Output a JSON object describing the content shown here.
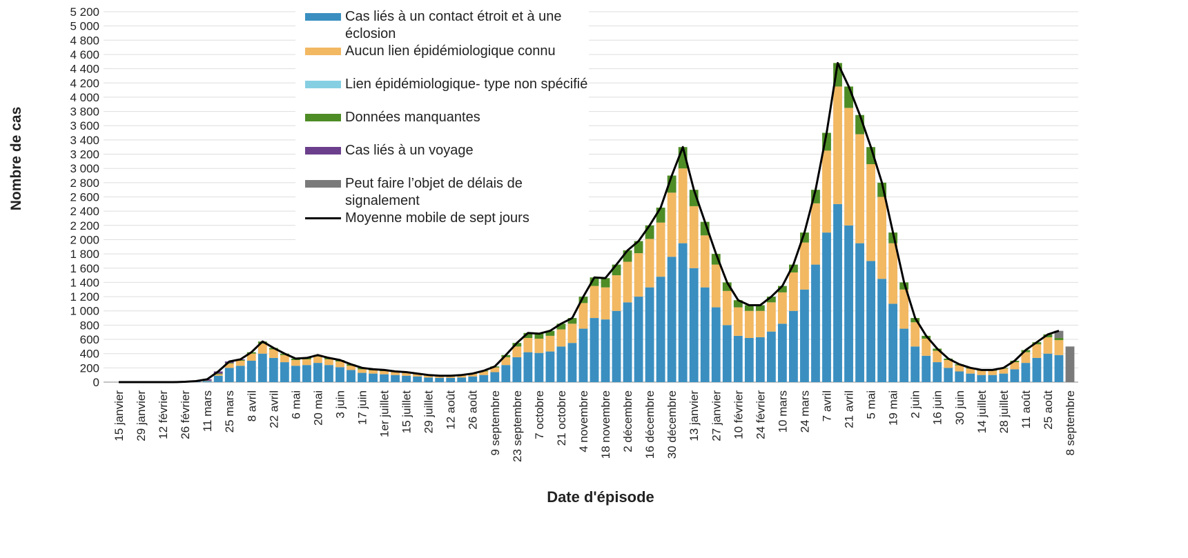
{
  "chart_data": {
    "type": "bar",
    "stacked": true,
    "y_label": "Nombre de cas",
    "x_label": "Date d'épisode",
    "categories": [
      "15 janvier",
      null,
      "29 janvier",
      null,
      "12 février",
      null,
      "26 février",
      null,
      "11 mars",
      null,
      "25 mars",
      null,
      "8 avril",
      null,
      "22 avril",
      null,
      "6 mai",
      null,
      "20 mai",
      null,
      "3 juin",
      null,
      "17 juin",
      null,
      "1er juillet",
      null,
      "15 juillet",
      null,
      "29 juillet",
      null,
      "12 août",
      null,
      "26 août",
      null,
      "9 septembre",
      null,
      "23 septembre",
      null,
      "7 octobre",
      null,
      "21 octobre",
      null,
      "4 novembre",
      null,
      "18 novembre",
      null,
      "2 décembre",
      null,
      "16 décembre",
      null,
      "30 décembre",
      null,
      "13 janvier",
      null,
      "27 janvier",
      null,
      "10 février",
      null,
      "24 février",
      null,
      "10 mars",
      null,
      "24 mars",
      null,
      "7 avril",
      null,
      "21 avril",
      null,
      "5 mai",
      null,
      "19 mai",
      null,
      "2 juin",
      null,
      "16 juin",
      null,
      "30 juin",
      null,
      "14 juillet",
      null,
      "28 juillet",
      null,
      "11 août",
      null,
      "25 août",
      null,
      "8 septembre"
    ],
    "series": [
      {
        "name": "Cas liés à un contact étroit et à une éclosion",
        "color": "#3a8fc0",
        "values": [
          0,
          0,
          0,
          0,
          0,
          0,
          0,
          5,
          15,
          90,
          200,
          230,
          300,
          400,
          340,
          280,
          230,
          240,
          270,
          240,
          210,
          170,
          130,
          120,
          110,
          100,
          90,
          80,
          65,
          60,
          60,
          65,
          80,
          100,
          140,
          240,
          350,
          420,
          410,
          430,
          500,
          550,
          750,
          900,
          880,
          1000,
          1120,
          1200,
          1330,
          1480,
          1760,
          1950,
          1600,
          1330,
          1050,
          800,
          650,
          620,
          630,
          710,
          820,
          1000,
          1300,
          1650,
          2100,
          2500,
          2200,
          1950,
          1700,
          1450,
          1100,
          750,
          500,
          370,
          280,
          200,
          150,
          120,
          100,
          100,
          120,
          180,
          270,
          340,
          400,
          380,
          0
        ]
      },
      {
        "name": "Aucun lien épidémiologique connu",
        "color": "#f2b862",
        "values": [
          0,
          0,
          0,
          0,
          0,
          0,
          0,
          0,
          5,
          20,
          60,
          70,
          100,
          140,
          120,
          100,
          80,
          80,
          90,
          80,
          80,
          60,
          50,
          45,
          45,
          40,
          40,
          30,
          25,
          25,
          25,
          30,
          35,
          50,
          65,
          110,
          150,
          200,
          200,
          220,
          240,
          270,
          360,
          450,
          450,
          500,
          570,
          610,
          680,
          760,
          900,
          1050,
          870,
          730,
          600,
          480,
          400,
          380,
          370,
          410,
          440,
          540,
          660,
          860,
          1150,
          1650,
          1650,
          1530,
          1360,
          1150,
          850,
          550,
          340,
          240,
          160,
          110,
          85,
          70,
          60,
          60,
          70,
          100,
          150,
          190,
          230,
          210,
          0
        ]
      },
      {
        "name": "Lien épidémiologique- type non spécifié",
        "color": "#86cfe3",
        "values": [
          0,
          0,
          0,
          0,
          0,
          0,
          0,
          0,
          0,
          0,
          0,
          0,
          0,
          0,
          0,
          0,
          0,
          0,
          0,
          0,
          0,
          0,
          0,
          0,
          0,
          0,
          0,
          0,
          0,
          0,
          0,
          0,
          0,
          0,
          0,
          0,
          0,
          0,
          0,
          0,
          0,
          0,
          0,
          0,
          0,
          0,
          0,
          0,
          0,
          0,
          0,
          0,
          0,
          0,
          0,
          0,
          0,
          0,
          0,
          0,
          0,
          0,
          0,
          0,
          0,
          0,
          0,
          0,
          0,
          0,
          0,
          0,
          0,
          0,
          0,
          0,
          0,
          0,
          0,
          0,
          0,
          0,
          0,
          0,
          0,
          0,
          0
        ]
      },
      {
        "name": "Données manquantes",
        "color": "#4e8c26",
        "values": [
          0,
          0,
          0,
          0,
          0,
          0,
          0,
          0,
          0,
          10,
          10,
          10,
          20,
          30,
          20,
          20,
          20,
          20,
          20,
          20,
          20,
          20,
          20,
          15,
          15,
          10,
          10,
          10,
          10,
          5,
          5,
          5,
          5,
          10,
          15,
          30,
          50,
          70,
          70,
          70,
          80,
          80,
          90,
          120,
          130,
          150,
          160,
          170,
          190,
          210,
          240,
          300,
          230,
          190,
          150,
          120,
          100,
          80,
          80,
          80,
          90,
          110,
          140,
          190,
          250,
          330,
          300,
          270,
          240,
          200,
          150,
          100,
          60,
          40,
          30,
          20,
          15,
          10,
          10,
          10,
          10,
          20,
          30,
          30,
          40,
          30,
          0
        ]
      },
      {
        "name": "Cas liés à un voyage",
        "color": "#6b3f8c",
        "values": [
          0,
          0,
          0,
          0,
          0,
          0,
          5,
          10,
          20,
          30,
          20,
          10,
          0,
          0,
          0,
          0,
          0,
          0,
          0,
          0,
          0,
          0,
          0,
          0,
          0,
          0,
          0,
          0,
          0,
          0,
          0,
          0,
          0,
          0,
          0,
          0,
          0,
          0,
          0,
          0,
          0,
          0,
          0,
          0,
          0,
          0,
          0,
          0,
          0,
          0,
          0,
          0,
          0,
          0,
          0,
          0,
          0,
          0,
          0,
          0,
          0,
          0,
          0,
          0,
          0,
          0,
          0,
          0,
          0,
          0,
          0,
          0,
          0,
          0,
          0,
          0,
          0,
          0,
          0,
          0,
          0,
          0,
          0,
          0,
          0,
          0,
          0
        ]
      },
      {
        "name": "Peut faire l’objet de délais de signalement",
        "color": "#7a7a7a",
        "values": [
          0,
          0,
          0,
          0,
          0,
          0,
          0,
          0,
          0,
          0,
          0,
          0,
          0,
          0,
          0,
          0,
          0,
          0,
          0,
          0,
          0,
          0,
          0,
          0,
          0,
          0,
          0,
          0,
          0,
          0,
          0,
          0,
          0,
          0,
          0,
          0,
          0,
          0,
          0,
          0,
          0,
          0,
          0,
          0,
          0,
          0,
          0,
          0,
          0,
          0,
          0,
          0,
          0,
          0,
          0,
          0,
          0,
          0,
          0,
          0,
          0,
          0,
          0,
          0,
          0,
          0,
          0,
          0,
          0,
          0,
          0,
          0,
          0,
          0,
          0,
          0,
          0,
          0,
          0,
          0,
          0,
          0,
          0,
          0,
          0,
          100,
          500
        ]
      },
      {
        "name": "Moyenne mobile de sept jours",
        "color": "#000000",
        "type": "line",
        "values": [
          0,
          0,
          0,
          0,
          0,
          0,
          5,
          15,
          40,
          150,
          290,
          320,
          420,
          570,
          480,
          400,
          330,
          340,
          380,
          340,
          310,
          250,
          200,
          180,
          170,
          150,
          140,
          120,
          100,
          90,
          90,
          100,
          120,
          160,
          220,
          380,
          550,
          690,
          680,
          720,
          820,
          900,
          1200,
          1470,
          1460,
          1650,
          1850,
          1980,
          2200,
          2450,
          2900,
          3300,
          2700,
          2250,
          1800,
          1400,
          1150,
          1080,
          1080,
          1200,
          1350,
          1650,
          2100,
          2700,
          3500,
          4480,
          4150,
          3750,
          3300,
          2800,
          2100,
          1400,
          900,
          650,
          470,
          330,
          250,
          200,
          170,
          170,
          200,
          300,
          450,
          560,
          670,
          720,
          null
        ]
      }
    ],
    "ylim": [
      0,
      5200
    ],
    "yticks": [
      0,
      200,
      400,
      600,
      800,
      {
        "value": 1000,
        "label": "1 000"
      },
      {
        "value": 1200,
        "label": "1 200"
      },
      {
        "value": 1400,
        "label": "1 400"
      },
      {
        "value": 1600,
        "label": "1 600"
      },
      {
        "value": 1800,
        "label": "1 800"
      },
      {
        "value": 2000,
        "label": "2 000"
      },
      {
        "value": 2200,
        "label": "2 200"
      },
      {
        "value": 2400,
        "label": "2 400"
      },
      {
        "value": 2600,
        "label": "2 600"
      },
      {
        "value": 2800,
        "label": "2 800"
      },
      {
        "value": 3000,
        "label": "3 000"
      },
      {
        "value": 3200,
        "label": "3 200"
      },
      {
        "value": 3400,
        "label": "3 400"
      },
      {
        "value": 3600,
        "label": "3 600"
      },
      {
        "value": 3800,
        "label": "3 800"
      },
      {
        "value": 4000,
        "label": "4 000"
      },
      {
        "value": 4200,
        "label": "4 200"
      },
      {
        "value": 4400,
        "label": "4 400"
      },
      {
        "value": 4600,
        "label": "4 600"
      },
      {
        "value": 4800,
        "label": "4 800"
      },
      {
        "value": 5000,
        "label": "5 000"
      },
      {
        "value": 5200,
        "label": "5 200"
      }
    ],
    "grid": true
  }
}
